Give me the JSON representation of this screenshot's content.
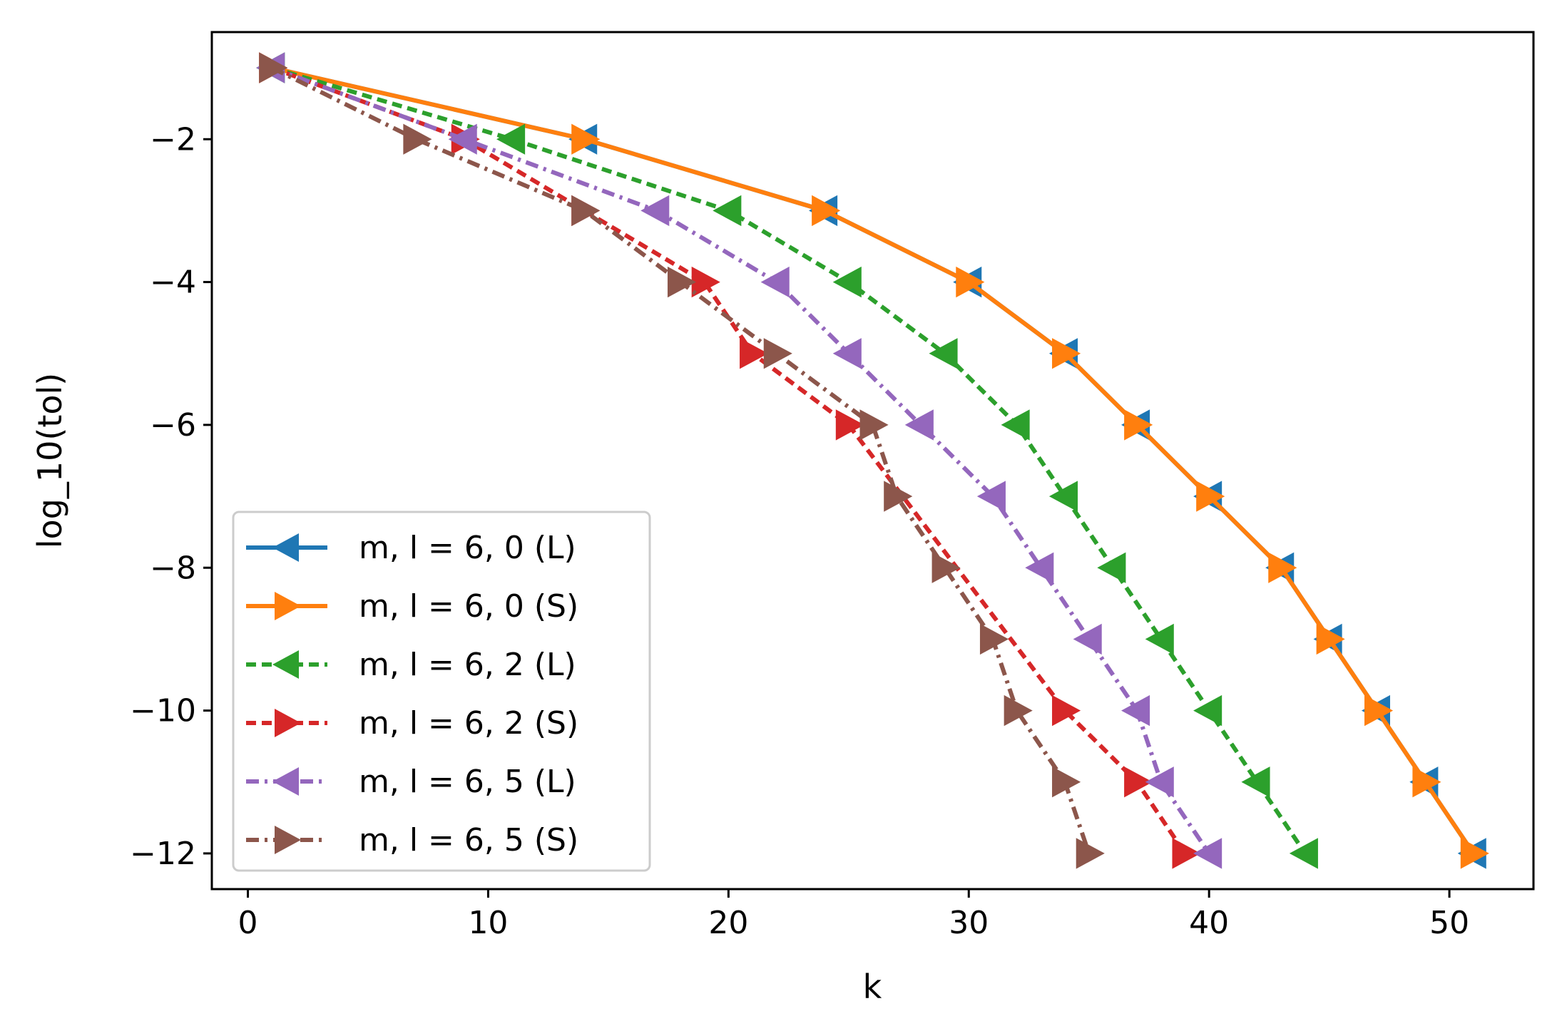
{
  "chart_data": {
    "type": "line",
    "title": "",
    "xlabel": "k",
    "ylabel": "log_10(tol)",
    "xlim": [
      -1.5,
      53.5
    ],
    "ylim": [
      -12.5,
      -0.5
    ],
    "xticks": [
      0,
      10,
      20,
      30,
      40,
      50
    ],
    "yticks": [
      -2,
      -4,
      -6,
      -8,
      -10,
      -12
    ],
    "xtick_labels": [
      "0",
      "10",
      "20",
      "30",
      "40",
      "50"
    ],
    "ytick_labels": [
      "−2",
      "−4",
      "−6",
      "−8",
      "−10",
      "−12"
    ],
    "legend_position": "lower-left",
    "series": [
      {
        "name": "m, l = 6, 0 (L)",
        "color": "#1f77b4",
        "style": "solid",
        "marker": "left-triangle",
        "x": [
          1,
          14,
          24,
          30,
          34,
          37,
          40,
          43,
          45,
          47,
          49,
          51
        ],
        "y": [
          -1,
          -2,
          -3,
          -4,
          -5,
          -6,
          -7,
          -8,
          -9,
          -10,
          -11,
          -12
        ]
      },
      {
        "name": "m, l = 6, 0 (S)",
        "color": "#ff7f0e",
        "style": "solid",
        "marker": "right-triangle",
        "x": [
          1,
          14,
          24,
          30,
          34,
          37,
          40,
          43,
          45,
          47,
          49,
          51
        ],
        "y": [
          -1,
          -2,
          -3,
          -4,
          -5,
          -6,
          -7,
          -8,
          -9,
          -10,
          -11,
          -12
        ]
      },
      {
        "name": "m, l = 6, 2 (L)",
        "color": "#2ca02c",
        "style": "dashed",
        "marker": "left-triangle",
        "x": [
          1,
          11,
          20,
          25,
          29,
          32,
          34,
          36,
          38,
          40,
          42,
          44
        ],
        "y": [
          -1,
          -2,
          -3,
          -4,
          -5,
          -6,
          -7,
          -8,
          -9,
          -10,
          -11,
          -12
        ]
      },
      {
        "name": "m, l = 6, 2 (S)",
        "color": "#d62728",
        "style": "dashed",
        "marker": "right-triangle",
        "x": [
          1,
          9,
          14,
          19,
          21,
          25,
          34,
          37,
          39
        ],
        "y": [
          -1,
          -2,
          -3,
          -4,
          -5,
          -6,
          -10,
          -11,
          -12
        ]
      },
      {
        "name": "m, l = 6, 5 (L)",
        "color": "#9467bd",
        "style": "dashdot",
        "marker": "left-triangle",
        "x": [
          1,
          9,
          17,
          22,
          25,
          28,
          31,
          33,
          35,
          37,
          38,
          40
        ],
        "y": [
          -1,
          -2,
          -3,
          -4,
          -5,
          -6,
          -7,
          -8,
          -9,
          -10,
          -11,
          -12
        ]
      },
      {
        "name": "m, l = 6, 5 (S)",
        "color": "#8c564b",
        "style": "dashdot",
        "marker": "right-triangle",
        "x": [
          1,
          7,
          14,
          18,
          22,
          26,
          27,
          29,
          31,
          32,
          34,
          35
        ],
        "y": [
          -1,
          -2,
          -3,
          -4,
          -5,
          -6,
          -7,
          -8,
          -9,
          -10,
          -11,
          -12
        ]
      }
    ]
  }
}
